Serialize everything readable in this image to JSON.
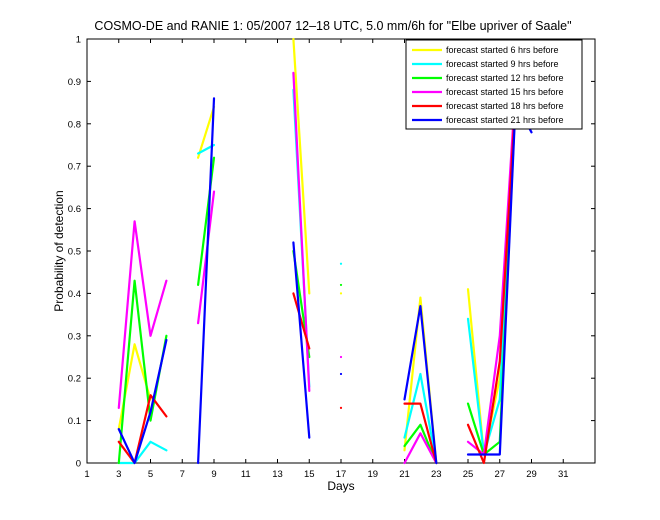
{
  "chart_data": {
    "type": "line",
    "title": "COSMO-DE and RANIE 1: 05/2007 12–18 UTC, 5.0 mm/6h for \"Elbe upriver of Saale\"",
    "xlabel": "Days",
    "ylabel": "Probability of detection",
    "xlim": [
      1,
      33
    ],
    "ylim": [
      0,
      1
    ],
    "xticks": [
      "1",
      "3",
      "5",
      "7",
      "9",
      "11",
      "13",
      "15",
      "17",
      "19",
      "21",
      "23",
      "25",
      "27",
      "29",
      "31"
    ],
    "yticks": [
      "0",
      "0.1",
      "0.2",
      "0.3",
      "0.4",
      "0.5",
      "0.6",
      "0.7",
      "0.8",
      "0.9",
      "1"
    ],
    "grid": false,
    "legend_position": "top-right",
    "series": [
      {
        "name": "forecast started 6 hrs before",
        "color": "#ffff00",
        "segments": [
          [
            [
              3,
              0.08
            ],
            [
              4,
              0.28
            ],
            [
              5,
              0.15
            ]
          ],
          [
            [
              8,
              0.72
            ],
            [
              9,
              0.84
            ]
          ],
          [
            [
              14,
              1.0
            ],
            [
              15,
              0.4
            ]
          ],
          [
            [
              17,
              0.4
            ]
          ],
          [
            [
              21,
              0.03
            ],
            [
              22,
              0.39
            ],
            [
              23,
              0.0
            ]
          ],
          [
            [
              25,
              0.41
            ],
            [
              26,
              0.02
            ],
            [
              27,
              0.2
            ],
            [
              28,
              0.87
            ],
            [
              29,
              0.8
            ]
          ]
        ]
      },
      {
        "name": "forecast started 9 hrs before",
        "color": "#00ffff",
        "segments": [
          [
            [
              3,
              0.0
            ],
            [
              4,
              0.0
            ],
            [
              5,
              0.05
            ],
            [
              6,
              0.03
            ]
          ],
          [
            [
              8,
              0.73
            ],
            [
              9,
              0.75
            ]
          ],
          [
            [
              14,
              0.88
            ],
            [
              15,
              0.18
            ]
          ],
          [
            [
              17,
              0.47
            ]
          ],
          [
            [
              21,
              0.06
            ],
            [
              22,
              0.21
            ],
            [
              23,
              0.0
            ]
          ],
          [
            [
              25,
              0.34
            ],
            [
              26,
              0.02
            ],
            [
              27,
              0.15
            ],
            [
              28,
              0.86
            ],
            [
              29,
              0.8
            ]
          ]
        ]
      },
      {
        "name": "forecast started 12 hrs before",
        "color": "#00ff00",
        "segments": [
          [
            [
              3,
              0.0
            ],
            [
              4,
              0.43
            ],
            [
              5,
              0.1
            ],
            [
              6,
              0.3
            ]
          ],
          [
            [
              8,
              0.42
            ],
            [
              9,
              0.72
            ]
          ],
          [
            [
              14,
              0.5
            ],
            [
              15,
              0.25
            ]
          ],
          [
            [
              17,
              0.42
            ]
          ],
          [
            [
              21,
              0.04
            ],
            [
              22,
              0.09
            ],
            [
              23,
              0.0
            ]
          ],
          [
            [
              25,
              0.14
            ],
            [
              26,
              0.02
            ],
            [
              27,
              0.05
            ],
            [
              28,
              0.86
            ],
            [
              29,
              0.79
            ]
          ]
        ]
      },
      {
        "name": "forecast started 15 hrs before",
        "color": "#ff00ff",
        "segments": [
          [
            [
              3,
              0.13
            ],
            [
              4,
              0.57
            ],
            [
              5,
              0.3
            ],
            [
              6,
              0.43
            ]
          ],
          [
            [
              8,
              0.33
            ],
            [
              9,
              0.64
            ]
          ],
          [
            [
              14,
              0.92
            ],
            [
              15,
              0.17
            ]
          ],
          [
            [
              17,
              0.25
            ]
          ],
          [
            [
              21,
              0.0
            ],
            [
              22,
              0.07
            ],
            [
              23,
              0.0
            ]
          ],
          [
            [
              25,
              0.05
            ],
            [
              26,
              0.02
            ],
            [
              27,
              0.3
            ],
            [
              28,
              0.89
            ],
            [
              29,
              0.82
            ]
          ]
        ]
      },
      {
        "name": "forecast started 18 hrs before",
        "color": "#ff0000",
        "segments": [
          [
            [
              3,
              0.05
            ],
            [
              4,
              0.0
            ],
            [
              5,
              0.16
            ],
            [
              6,
              0.11
            ]
          ],
          [
            [
              14,
              0.4
            ],
            [
              15,
              0.27
            ]
          ],
          [
            [
              17,
              0.13
            ]
          ],
          [
            [
              21,
              0.14
            ],
            [
              22,
              0.14
            ],
            [
              23,
              0.0
            ]
          ],
          [
            [
              25,
              0.09
            ],
            [
              26,
              0.0
            ],
            [
              27,
              0.24
            ],
            [
              28,
              0.86
            ],
            [
              29,
              0.79
            ]
          ]
        ]
      },
      {
        "name": "forecast started 21 hrs before",
        "color": "#0000ff",
        "segments": [
          [
            [
              3,
              0.08
            ],
            [
              4,
              0.0
            ],
            [
              5,
              0.12
            ],
            [
              6,
              0.29
            ]
          ],
          [
            [
              8,
              0.0
            ],
            [
              9,
              0.86
            ]
          ],
          [
            [
              14,
              0.52
            ],
            [
              15,
              0.06
            ]
          ],
          [
            [
              17,
              0.21
            ]
          ],
          [
            [
              21,
              0.15
            ],
            [
              22,
              0.37
            ],
            [
              23,
              0.0
            ]
          ],
          [
            [
              25,
              0.02
            ],
            [
              26,
              0.02
            ],
            [
              27,
              0.02
            ],
            [
              28,
              0.85
            ],
            [
              29,
              0.78
            ]
          ]
        ]
      }
    ]
  }
}
